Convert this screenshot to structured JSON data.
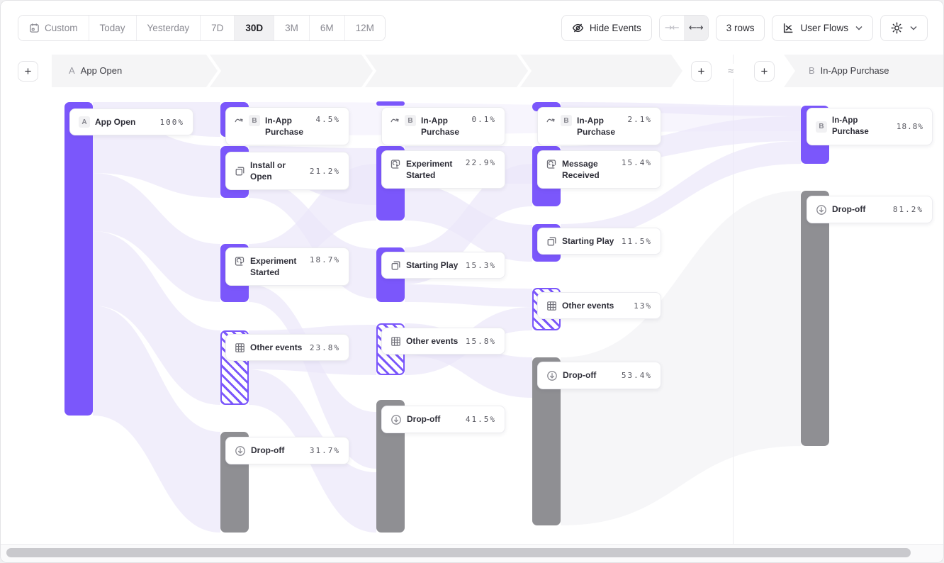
{
  "toolbar": {
    "date_ranges": [
      "Custom",
      "Today",
      "Yesterday",
      "7D",
      "30D",
      "3M",
      "6M",
      "12M"
    ],
    "active_range": "30D",
    "hide_events_label": "Hide Events",
    "collapse_glyph": "→←",
    "expand_glyph": "←→",
    "rows_label": "3 rows",
    "chart_type_label": "User Flows"
  },
  "header": {
    "start": {
      "badge": "A",
      "label": "App Open"
    },
    "end": {
      "badge": "B",
      "label": "In-App Purchase"
    },
    "approx": "≈",
    "add": "+"
  },
  "flows": {
    "columns": [
      {
        "nodes": [
          {
            "badge": "A",
            "label": "App Open",
            "value": "100%",
            "type": "start"
          }
        ]
      },
      {
        "nodes": [
          {
            "badge": "B",
            "label": "In-App Purchase",
            "value": "4.5%",
            "type": "target"
          },
          {
            "label": "Install or Open",
            "value": "21.2%",
            "type": "event"
          },
          {
            "label": "Experiment Started",
            "value": "18.7%",
            "type": "event-action"
          },
          {
            "label": "Other events",
            "value": "23.8%",
            "type": "other"
          },
          {
            "label": "Drop-off",
            "value": "31.7%",
            "type": "dropoff"
          }
        ]
      },
      {
        "nodes": [
          {
            "badge": "B",
            "label": "In-App Purchase",
            "value": "0.1%",
            "type": "target"
          },
          {
            "label": "Experiment Started",
            "value": "22.9%",
            "type": "event-action"
          },
          {
            "label": "Starting Play",
            "value": "15.3%",
            "type": "event"
          },
          {
            "label": "Other events",
            "value": "15.8%",
            "type": "other"
          },
          {
            "label": "Drop-off",
            "value": "41.5%",
            "type": "dropoff"
          }
        ]
      },
      {
        "nodes": [
          {
            "badge": "B",
            "label": "In-App Purchase",
            "value": "2.1%",
            "type": "target"
          },
          {
            "label": "Message Received",
            "value": "15.4%",
            "type": "event-action"
          },
          {
            "label": "Starting Play",
            "value": "11.5%",
            "type": "event"
          },
          {
            "label": "Other events",
            "value": "13%",
            "type": "other"
          },
          {
            "label": "Drop-off",
            "value": "53.4%",
            "type": "dropoff"
          }
        ]
      },
      {
        "nodes": [
          {
            "badge": "B",
            "label": "In-App Purchase",
            "value": "18.8%",
            "type": "end"
          },
          {
            "label": "Drop-off",
            "value": "81.2%",
            "type": "dropoff"
          }
        ]
      }
    ]
  },
  "colors": {
    "node_purple": "#7B57FB",
    "node_gray": "#8F8F93",
    "ribbon_lavender": "#ECE8FA",
    "band_gray": "#F5F5F6"
  }
}
